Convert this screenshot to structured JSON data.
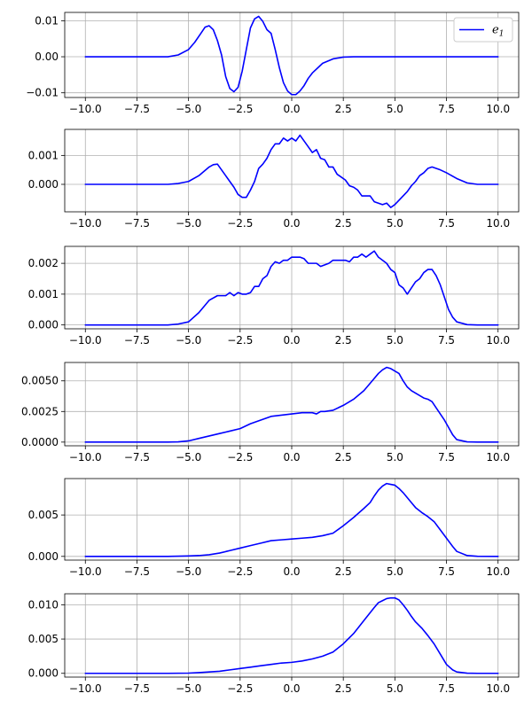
{
  "colors": {
    "series": "#0000ff",
    "grid": "#b0b0b0",
    "axis": "#000000"
  },
  "chart_data": [
    {
      "type": "line",
      "title": "",
      "xlabel": "",
      "ylabel": "",
      "grid": true,
      "legend": {
        "entries": [
          {
            "symbol": "e",
            "subscript": "1"
          }
        ],
        "placement": "top-right"
      },
      "xlim": [
        -11,
        11
      ],
      "ylim": [
        -0.0113,
        0.0123
      ],
      "xticks": [
        -10,
        -7.5,
        -5,
        -2.5,
        0,
        2.5,
        5,
        7.5,
        10
      ],
      "xticklabels": [
        "−10.0",
        "−7.5",
        "−5.0",
        "−2.5",
        "0.0",
        "2.5",
        "5.0",
        "7.5",
        "10.0"
      ],
      "yticks": [
        -0.01,
        0,
        0.01
      ],
      "yticklabels": [
        "−0.01",
        "0.00",
        "0.01"
      ],
      "series": [
        {
          "x": [
            -10,
            -7,
            -6,
            -5.5,
            -5,
            -4.7,
            -4.4,
            -4.2,
            -4.0,
            -3.8,
            -3.6,
            -3.4,
            -3.2,
            -3.0,
            -2.8,
            -2.6,
            -2.4,
            -2.2,
            -2.0,
            -1.8,
            -1.6,
            -1.4,
            -1.2,
            -1.0,
            -0.8,
            -0.6,
            -0.4,
            -0.2,
            0,
            0.2,
            0.4,
            0.6,
            0.8,
            1.0,
            1.5,
            2.0,
            2.5,
            3.0,
            5,
            10
          ],
          "y": [
            0,
            0,
            0,
            0.0005,
            0.002,
            0.004,
            0.0065,
            0.0082,
            0.0086,
            0.0075,
            0.0045,
            0.0005,
            -0.0055,
            -0.0088,
            -0.0097,
            -0.0085,
            -0.004,
            0.002,
            0.008,
            0.0105,
            0.0112,
            0.0098,
            0.0075,
            0.0065,
            0.002,
            -0.003,
            -0.0072,
            -0.0095,
            -0.0105,
            -0.0105,
            -0.0095,
            -0.008,
            -0.006,
            -0.0045,
            -0.0018,
            -0.0006,
            -0.0001,
            0,
            0,
            0
          ]
        }
      ]
    },
    {
      "type": "line",
      "title": "",
      "xlabel": "",
      "ylabel": "",
      "grid": true,
      "xlim": [
        -11,
        11
      ],
      "ylim": [
        -0.00095,
        0.0019
      ],
      "xticks": [
        -10,
        -7.5,
        -5,
        -2.5,
        0,
        2.5,
        5,
        7.5,
        10
      ],
      "xticklabels": [
        "−10.0",
        "−7.5",
        "−5.0",
        "−2.5",
        "0.0",
        "2.5",
        "5.0",
        "7.5",
        "10.0"
      ],
      "yticks": [
        0,
        0.001
      ],
      "yticklabels": [
        "0.000",
        "0.001"
      ],
      "series": [
        {
          "x": [
            -10,
            -7,
            -6,
            -5.5,
            -5,
            -4.5,
            -4.0,
            -3.8,
            -3.6,
            -3.4,
            -3.2,
            -3.0,
            -2.8,
            -2.6,
            -2.4,
            -2.2,
            -2.0,
            -1.8,
            -1.6,
            -1.4,
            -1.2,
            -1.0,
            -0.8,
            -0.6,
            -0.4,
            -0.2,
            0,
            0.2,
            0.4,
            0.6,
            0.8,
            1.0,
            1.2,
            1.4,
            1.6,
            1.8,
            2.0,
            2.2,
            2.4,
            2.6,
            2.8,
            3.0,
            3.2,
            3.4,
            3.6,
            3.8,
            4.0,
            4.2,
            4.4,
            4.6,
            4.8,
            5.0,
            5.2,
            5.4,
            5.6,
            5.8,
            6.0,
            6.2,
            6.4,
            6.6,
            6.8,
            7.0,
            7.2,
            7.5,
            8.0,
            8.5,
            9.0,
            10
          ],
          "y": [
            0,
            0,
            0,
            3e-05,
            0.0001,
            0.0003,
            0.0006,
            0.00068,
            0.0007,
            0.0005,
            0.0003,
            0.0001,
            -0.0001,
            -0.00035,
            -0.00045,
            -0.00045,
            -0.0002,
            0.0001,
            0.00055,
            0.0007,
            0.0009,
            0.0012,
            0.0014,
            0.0014,
            0.0016,
            0.0015,
            0.0016,
            0.0015,
            0.0017,
            0.0015,
            0.0013,
            0.0011,
            0.0012,
            0.0009,
            0.00085,
            0.0006,
            0.0006,
            0.00035,
            0.00025,
            0.00015,
            -5e-05,
            -0.0001,
            -0.0002,
            -0.0004,
            -0.0004,
            -0.0004,
            -0.0006,
            -0.00065,
            -0.0007,
            -0.00065,
            -0.0008,
            -0.0007,
            -0.00055,
            -0.0004,
            -0.00025,
            -5e-05,
            0.0001,
            0.0003,
            0.0004,
            0.00055,
            0.0006,
            0.00055,
            0.0005,
            0.0004,
            0.0002,
            5e-05,
            0,
            0
          ]
        }
      ]
    },
    {
      "type": "line",
      "title": "",
      "xlabel": "",
      "ylabel": "",
      "grid": true,
      "xlim": [
        -11,
        11
      ],
      "ylim": [
        -0.000125,
        0.00255
      ],
      "xticks": [
        -10,
        -7.5,
        -5,
        -2.5,
        0,
        2.5,
        5,
        7.5,
        10
      ],
      "xticklabels": [
        "−10.0",
        "−7.5",
        "−5.0",
        "−2.5",
        "0.0",
        "2.5",
        "5.0",
        "7.5",
        "10.0"
      ],
      "yticks": [
        0,
        0.001,
        0.002
      ],
      "yticklabels": [
        "0.000",
        "0.001",
        "0.002"
      ],
      "series": [
        {
          "x": [
            -10,
            -7,
            -6,
            -5.5,
            -5,
            -4.5,
            -4.0,
            -3.6,
            -3.2,
            -3.0,
            -2.8,
            -2.6,
            -2.4,
            -2.2,
            -2.0,
            -1.8,
            -1.6,
            -1.4,
            -1.2,
            -1.0,
            -0.8,
            -0.6,
            -0.4,
            -0.2,
            0,
            0.2,
            0.4,
            0.6,
            0.8,
            1.0,
            1.2,
            1.4,
            1.6,
            1.8,
            2.0,
            2.2,
            2.4,
            2.6,
            2.8,
            3.0,
            3.2,
            3.4,
            3.6,
            3.8,
            4.0,
            4.2,
            4.4,
            4.6,
            4.8,
            5.0,
            5.2,
            5.4,
            5.6,
            5.8,
            6.0,
            6.2,
            6.4,
            6.6,
            6.8,
            7.0,
            7.2,
            7.4,
            7.6,
            7.8,
            8.0,
            8.5,
            9.0,
            10
          ],
          "y": [
            0,
            0,
            0,
            3e-05,
            0.0001,
            0.0004,
            0.0008,
            0.00095,
            0.00095,
            0.00105,
            0.00095,
            0.00105,
            0.001,
            0.001,
            0.00105,
            0.00125,
            0.00125,
            0.0015,
            0.0016,
            0.0019,
            0.00205,
            0.002,
            0.0021,
            0.0021,
            0.0022,
            0.0022,
            0.0022,
            0.00215,
            0.002,
            0.002,
            0.002,
            0.0019,
            0.00195,
            0.002,
            0.0021,
            0.0021,
            0.0021,
            0.0021,
            0.00205,
            0.0022,
            0.0022,
            0.0023,
            0.0022,
            0.0023,
            0.0024,
            0.0022,
            0.0021,
            0.002,
            0.0018,
            0.0017,
            0.0013,
            0.0012,
            0.001,
            0.0012,
            0.0014,
            0.0015,
            0.0017,
            0.0018,
            0.0018,
            0.0016,
            0.0013,
            0.0009,
            0.0005,
            0.00025,
            0.0001,
            1e-05,
            0,
            0
          ]
        }
      ]
    },
    {
      "type": "line",
      "title": "",
      "xlabel": "",
      "ylabel": "",
      "grid": true,
      "xlim": [
        -11,
        11
      ],
      "ylim": [
        -0.0003,
        0.0065
      ],
      "xticks": [
        -10,
        -7.5,
        -5,
        -2.5,
        0,
        2.5,
        5,
        7.5,
        10
      ],
      "xticklabels": [
        "−10.0",
        "−7.5",
        "−5.0",
        "−2.5",
        "0.0",
        "2.5",
        "5.0",
        "7.5",
        "10.0"
      ],
      "yticks": [
        0,
        0.0025,
        0.005
      ],
      "yticklabels": [
        "0.0000",
        "0.0025",
        "0.0050"
      ],
      "series": [
        {
          "x": [
            -10,
            -7,
            -6,
            -5.5,
            -5,
            -4.5,
            -4.0,
            -3.5,
            -3.0,
            -2.5,
            -2.0,
            -1.5,
            -1.0,
            -0.5,
            0,
            0.5,
            1.0,
            1.2,
            1.4,
            1.6,
            2.0,
            2.5,
            3.0,
            3.5,
            3.8,
            4.0,
            4.2,
            4.4,
            4.6,
            4.8,
            5.0,
            5.2,
            5.4,
            5.6,
            5.8,
            6.0,
            6.2,
            6.4,
            6.6,
            6.8,
            7.0,
            7.2,
            7.4,
            7.6,
            7.8,
            8.0,
            8.5,
            9.0,
            10
          ],
          "y": [
            0,
            0,
            0,
            2e-05,
            0.0001,
            0.0003,
            0.0005,
            0.0007,
            0.0009,
            0.0011,
            0.0015,
            0.0018,
            0.0021,
            0.0022,
            0.0023,
            0.0024,
            0.0024,
            0.0023,
            0.0025,
            0.0025,
            0.0026,
            0.003,
            0.0035,
            0.0042,
            0.0048,
            0.0052,
            0.0056,
            0.0059,
            0.0061,
            0.006,
            0.0058,
            0.0056,
            0.005,
            0.0045,
            0.0042,
            0.004,
            0.0038,
            0.0036,
            0.0035,
            0.0033,
            0.0028,
            0.0023,
            0.0018,
            0.0012,
            0.0006,
            0.0002,
            2e-05,
            0,
            0
          ]
        }
      ]
    },
    {
      "type": "line",
      "title": "",
      "xlabel": "",
      "ylabel": "",
      "grid": true,
      "xlim": [
        -11,
        11
      ],
      "ylim": [
        -0.00045,
        0.0094
      ],
      "xticks": [
        -10,
        -7.5,
        -5,
        -2.5,
        0,
        2.5,
        5,
        7.5,
        10
      ],
      "xticklabels": [
        "−10.0",
        "−7.5",
        "−5.0",
        "−2.5",
        "0.0",
        "2.5",
        "5.0",
        "7.5",
        "10.0"
      ],
      "yticks": [
        0,
        0.005
      ],
      "yticklabels": [
        "0.000",
        "0.005"
      ],
      "series": [
        {
          "x": [
            -10,
            -7,
            -6,
            -5,
            -4.5,
            -4.0,
            -3.5,
            -3.0,
            -2.5,
            -2.0,
            -1.5,
            -1.0,
            -0.5,
            0,
            0.5,
            1.0,
            1.5,
            2.0,
            2.5,
            3.0,
            3.5,
            3.8,
            4.0,
            4.2,
            4.4,
            4.6,
            4.8,
            5.0,
            5.2,
            5.4,
            5.6,
            5.8,
            6.0,
            6.3,
            6.6,
            6.9,
            7.2,
            7.5,
            7.8,
            8.0,
            8.5,
            9.0,
            10
          ],
          "y": [
            0,
            0,
            0,
            5e-05,
            0.0001,
            0.0002,
            0.0004,
            0.0007,
            0.001,
            0.0013,
            0.0016,
            0.0019,
            0.002,
            0.0021,
            0.0022,
            0.0023,
            0.0025,
            0.0028,
            0.0037,
            0.0047,
            0.0058,
            0.0065,
            0.0073,
            0.008,
            0.0085,
            0.0088,
            0.0087,
            0.0086,
            0.0082,
            0.0077,
            0.0071,
            0.0065,
            0.0059,
            0.0053,
            0.0048,
            0.0042,
            0.0032,
            0.0022,
            0.0012,
            0.0006,
            0.0001,
            1e-05,
            0
          ]
        }
      ]
    },
    {
      "type": "line",
      "title": "",
      "xlabel": "",
      "ylabel": "",
      "grid": true,
      "xlim": [
        -11,
        11
      ],
      "ylim": [
        -0.00055,
        0.0116
      ],
      "xticks": [
        -10,
        -7.5,
        -5,
        -2.5,
        0,
        2.5,
        5,
        7.5,
        10
      ],
      "xticklabels": [
        "−10.0",
        "−7.5",
        "−5.0",
        "−2.5",
        "0.0",
        "2.5",
        "5.0",
        "7.5",
        "10.0"
      ],
      "yticks": [
        0,
        0.005,
        0.01
      ],
      "yticklabels": [
        "0.000",
        "0.005",
        "0.010"
      ],
      "series": [
        {
          "x": [
            -10,
            -7,
            -6,
            -5,
            -4.5,
            -4.0,
            -3.5,
            -3.0,
            -2.5,
            -2.0,
            -1.5,
            -1.0,
            -0.5,
            0,
            0.5,
            1.0,
            1.5,
            2.0,
            2.5,
            3.0,
            3.5,
            4.0,
            4.2,
            4.4,
            4.6,
            4.8,
            5.0,
            5.2,
            5.4,
            5.6,
            5.8,
            6.0,
            6.3,
            6.6,
            6.9,
            7.2,
            7.5,
            7.8,
            8.0,
            8.5,
            9.0,
            10
          ],
          "y": [
            0,
            0,
            0,
            3e-05,
            0.0001,
            0.0002,
            0.0003,
            0.0005,
            0.0007,
            0.0009,
            0.0011,
            0.0013,
            0.0015,
            0.0016,
            0.0018,
            0.0021,
            0.0025,
            0.0031,
            0.0043,
            0.0058,
            0.0077,
            0.0096,
            0.0103,
            0.0106,
            0.0109,
            0.011,
            0.011,
            0.0107,
            0.01,
            0.0092,
            0.0083,
            0.0075,
            0.0066,
            0.0055,
            0.0043,
            0.0028,
            0.0013,
            0.0005,
            0.0002,
            2e-05,
            0,
            0
          ]
        }
      ]
    }
  ]
}
